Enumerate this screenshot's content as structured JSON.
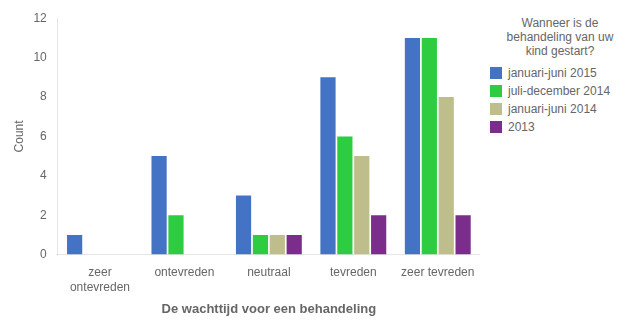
{
  "chart_data": {
    "type": "bar",
    "xlabel": "De wachttijd voor een behandeling",
    "ylabel": "Count",
    "legend_title": "Wanneer is de\nbehandeling van uw\nkind gestart?",
    "categories": [
      "zeer\nontevreden",
      "ontevreden",
      "neutraal",
      "tevreden",
      "zeer tevreden"
    ],
    "series": [
      {
        "name": "januari-juni 2015",
        "color": "#4472C4",
        "values": [
          1,
          5,
          3,
          9,
          11
        ]
      },
      {
        "name": "juli-december 2014",
        "color": "#2ECC40",
        "values": [
          0,
          2,
          1,
          6,
          11
        ]
      },
      {
        "name": "januari-juni 2014",
        "color": "#BEBE8C",
        "values": [
          0,
          0,
          1,
          5,
          8
        ]
      },
      {
        "name": "2013",
        "color": "#7B2D8B",
        "values": [
          0,
          0,
          1,
          2,
          2
        ]
      }
    ],
    "ylim": [
      0,
      12
    ],
    "yticks": [
      0,
      2,
      4,
      6,
      8,
      10,
      12
    ],
    "grid": false,
    "legend": "right"
  }
}
